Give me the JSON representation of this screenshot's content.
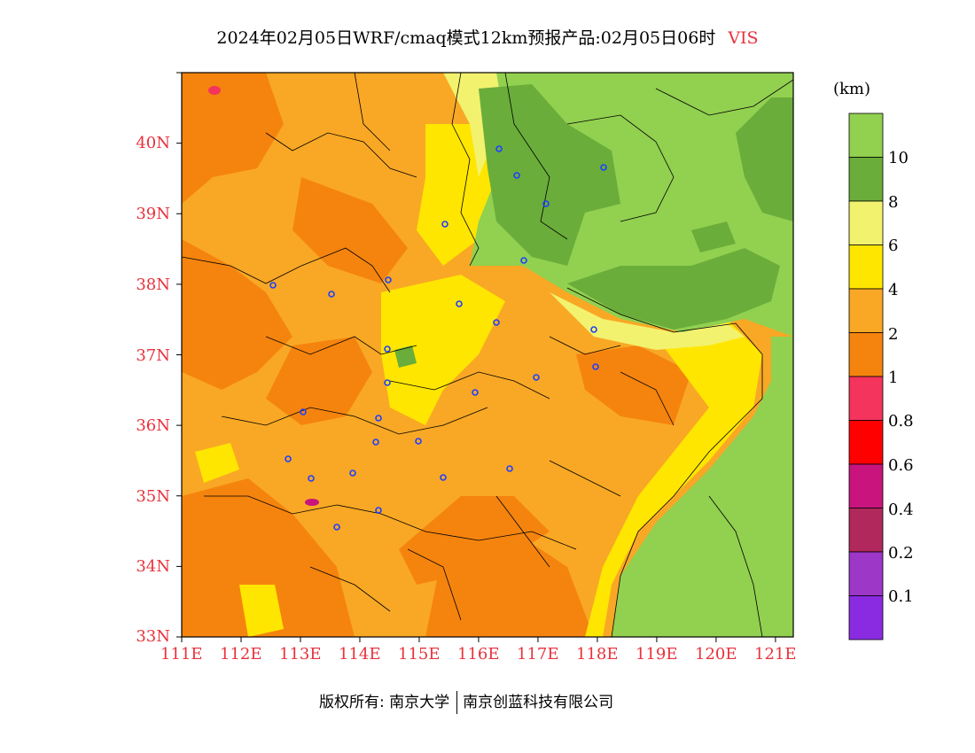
{
  "title": {
    "main": "2024年02月05日WRF/cmaq模式12km预报产品:02月05日06时",
    "variable": "VIS"
  },
  "axes": {
    "y_labels": [
      "40N",
      "39N",
      "38N",
      "37N",
      "36N",
      "35N",
      "34N",
      "33N"
    ],
    "x_labels": [
      "111E",
      "112E",
      "113E",
      "114E",
      "115E",
      "116E",
      "117E",
      "118E",
      "119E",
      "120E",
      "121E"
    ],
    "lat_range": [
      33,
      41
    ],
    "lon_range": [
      111,
      121.3
    ]
  },
  "colorbar": {
    "unit": "(km)",
    "labels": [
      "10",
      "8",
      "6",
      "4",
      "2",
      "1",
      "0.8",
      "0.6",
      "0.4",
      "0.2",
      "0.1"
    ],
    "colors": [
      "#92d050",
      "#6aad3a",
      "#f2f26e",
      "#ffe600",
      "#f9a825",
      "#f5840e",
      "#f4345c",
      "#ff0000",
      "#c8147c",
      "#b0285c",
      "#9c37c8",
      "#8a2be2"
    ]
  },
  "footer": {
    "copyright": "版权所有: 南京大学",
    "company": "南京创蓝科技有限公司"
  }
}
